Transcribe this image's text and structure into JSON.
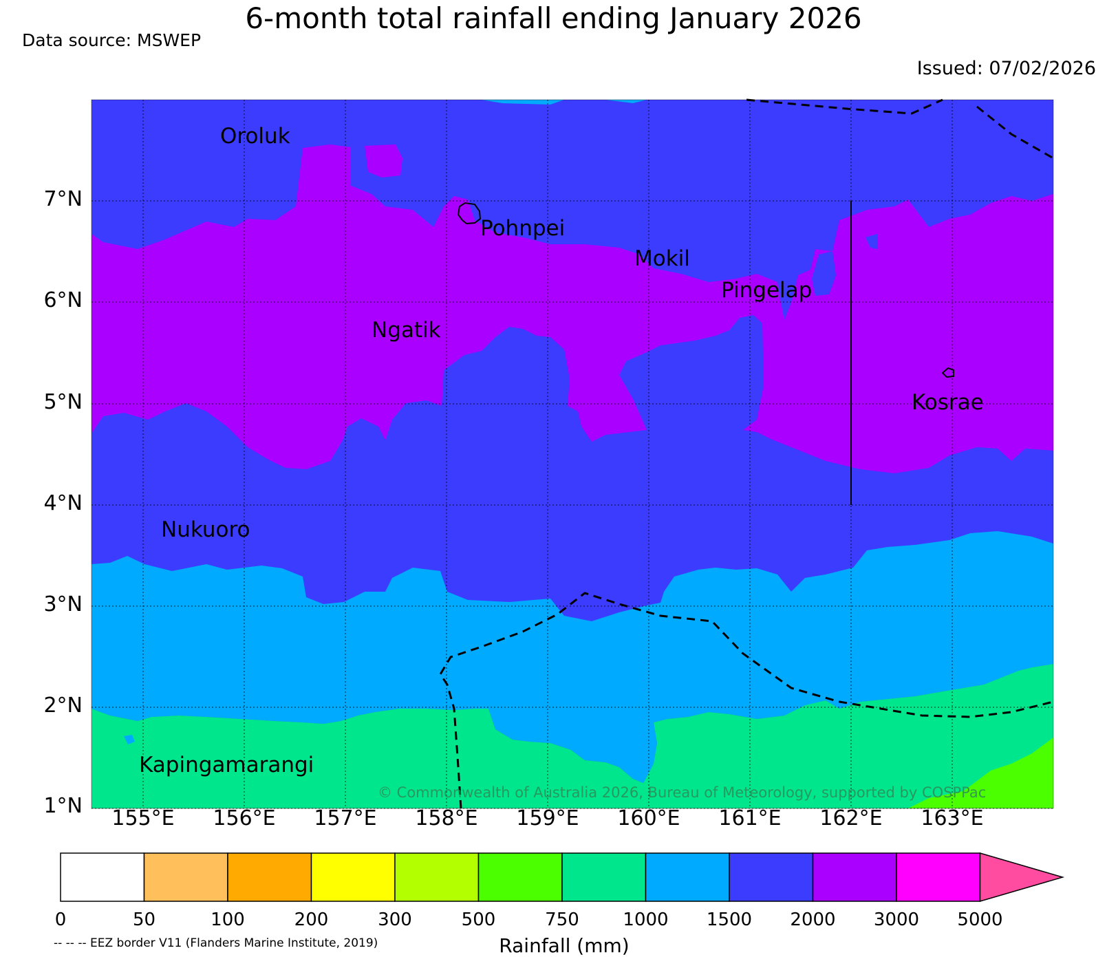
{
  "title": "6-month total rainfall ending January 2026",
  "data_source": "Data source: MSWEP",
  "issued": "Issued: 07/02/2026",
  "lat_labels": [
    "7°N",
    "6°N",
    "5°N",
    "4°N",
    "3°N",
    "2°N",
    "1°N"
  ],
  "lon_labels": [
    "155°E",
    "156°E",
    "157°E",
    "158°E",
    "159°E",
    "160°E",
    "161°E",
    "162°E",
    "163°E"
  ],
  "places": {
    "oroluk": "Oroluk",
    "pohnpei": "Pohnpei",
    "mokil": "Mokil",
    "pingelap": "Pingelap",
    "ngatik": "Ngatik",
    "kosrae": "Kosrae",
    "nukuoro": "Nukuoro",
    "kapingamarangi": "Kapingamarangi"
  },
  "copyright": "© Commonwealth of Australia 2026, Bureau of Meteorology, supported by COSPPac",
  "colorbar": {
    "label": "Rainfall (mm)",
    "ticks": [
      "0",
      "50",
      "100",
      "200",
      "300",
      "500",
      "750",
      "1000",
      "1500",
      "2000",
      "3000",
      "5000"
    ],
    "colors": [
      "#ffffff",
      "#ffbf5a",
      "#ffaa00",
      "#ffff00",
      "#b3ff00",
      "#4cff00",
      "#00e68c",
      "#00aaff",
      "#3c3cff",
      "#aa00ff",
      "#ff00ff",
      "#ff4ca0"
    ]
  },
  "eez_note": "-- -- -- EEZ border V11 (Flanders Marine Institute, 2019)",
  "map_colors": {
    "band_1500_2000": "#3c3cff",
    "band_2000_3000": "#aa00ff",
    "band_1000_1500": "#00aaff",
    "band_750_1000": "#00e68c",
    "band_500_750": "#4cff00"
  }
}
